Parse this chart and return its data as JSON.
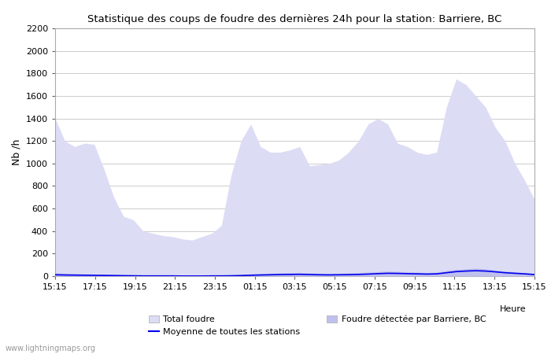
{
  "title": "Statistique des coups de foudre des dernières 24h pour la station: Barriere, BC",
  "xlabel": "Heure",
  "ylabel": "Nb /h",
  "ylim": [
    0,
    2200
  ],
  "yticks": [
    0,
    200,
    400,
    600,
    800,
    1000,
    1200,
    1400,
    1600,
    1800,
    2000,
    2200
  ],
  "x_labels": [
    "15:15",
    "17:15",
    "19:15",
    "21:15",
    "23:15",
    "01:15",
    "03:15",
    "05:15",
    "07:15",
    "09:15",
    "11:15",
    "13:15",
    "15:15"
  ],
  "fill_color_total": "#dcdcf5",
  "fill_color_barriere": "#c0c0ee",
  "line_color_moyenne": "#0000ee",
  "background_color": "#ffffff",
  "grid_color": "#cccccc",
  "watermark": "www.lightningmaps.org",
  "legend_total": "Total foudre",
  "legend_moyenne": "Moyenne de toutes les stations",
  "legend_barriere": "Foudre détectée par Barriere, BC",
  "total_foudre": [
    1400,
    1200,
    1150,
    1180,
    1170,
    950,
    700,
    530,
    500,
    400,
    380,
    360,
    350,
    330,
    320,
    350,
    380,
    450,
    900,
    1200,
    1350,
    1150,
    1100,
    1100,
    1120,
    1150,
    980,
    990,
    1000,
    1030,
    1100,
    1200,
    1350,
    1400,
    1350,
    1180,
    1150,
    1100,
    1080,
    1100,
    1500,
    1750,
    1700,
    1600,
    1500,
    1320,
    1200,
    1000,
    850,
    680
  ],
  "barriere_foudre": [
    30,
    25,
    22,
    20,
    18,
    15,
    12,
    10,
    8,
    6,
    5,
    4,
    4,
    3,
    3,
    3,
    4,
    5,
    8,
    12,
    18,
    22,
    25,
    28,
    30,
    32,
    28,
    25,
    22,
    25,
    28,
    32,
    35,
    40,
    45,
    42,
    38,
    35,
    32,
    35,
    50,
    60,
    65,
    70,
    65,
    55,
    45,
    38,
    30,
    22
  ],
  "moyenne_foudre": [
    12,
    10,
    9,
    8,
    7,
    6,
    5,
    4,
    3,
    2,
    2,
    2,
    2,
    1,
    1,
    1,
    2,
    2,
    3,
    5,
    8,
    10,
    12,
    14,
    15,
    16,
    14,
    12,
    11,
    12,
    13,
    15,
    18,
    22,
    25,
    24,
    22,
    20,
    18,
    20,
    30,
    40,
    45,
    48,
    45,
    38,
    30,
    25,
    20,
    14
  ]
}
